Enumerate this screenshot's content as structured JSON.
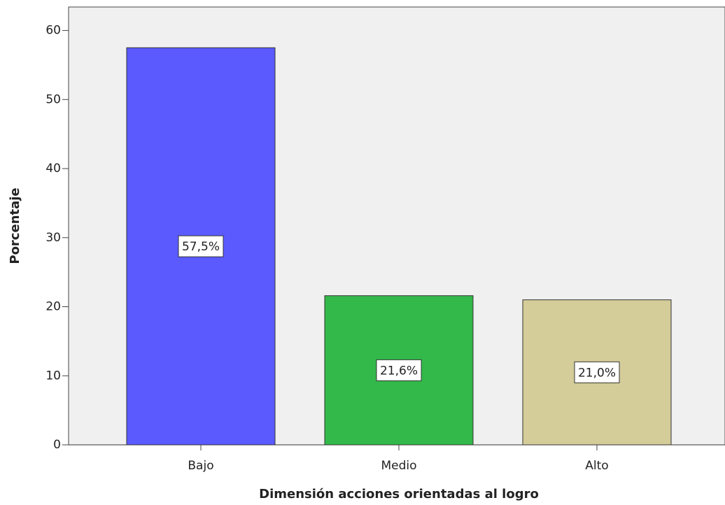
{
  "chart_data": {
    "type": "bar",
    "x_label": "Dimensión acciones orientadas al logro",
    "y_label": "Porcentaje",
    "categories": [
      "Bajo",
      "Medio",
      "Alto"
    ],
    "values": [
      57.5,
      21.6,
      21.0
    ],
    "value_labels": [
      "57,5%",
      "21,6%",
      "21,0%"
    ],
    "colors": [
      "#5a5aff",
      "#33b84a",
      "#d4cc99"
    ],
    "ylim": [
      0,
      63.4
    ],
    "yticks": [
      0,
      10,
      20,
      30,
      40,
      50,
      60
    ],
    "grid": false
  }
}
